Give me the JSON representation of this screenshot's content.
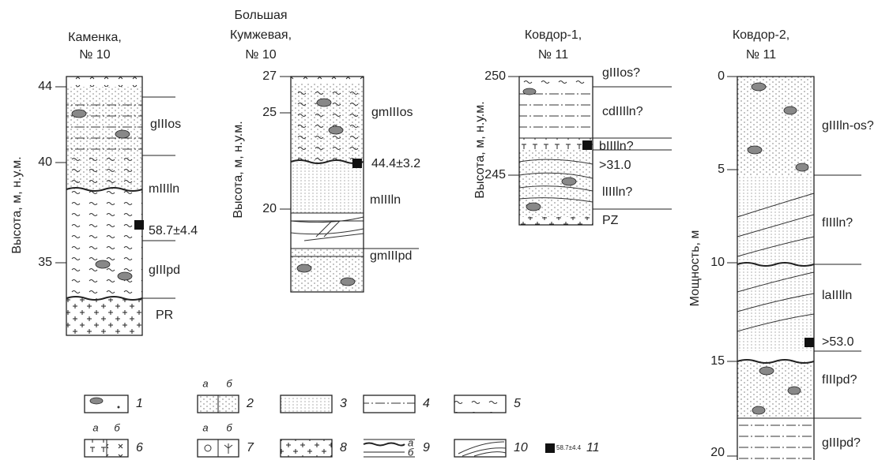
{
  "columns": [
    {
      "title": [
        "Каменка,",
        "№ 10"
      ],
      "axis_label": "Высота, м, н.у.м.",
      "ticks": [
        "44",
        "40",
        "35"
      ],
      "units": [
        "gIIIos",
        "mIIIln",
        "gIIIpd",
        "PR"
      ],
      "dates": [
        "58.7±4.4"
      ]
    },
    {
      "title": [
        "Большая",
        "Кумжевая,",
        "№ 10"
      ],
      "axis_label": "Высота, м, н.у.м.",
      "ticks": [
        "27",
        "25",
        "20"
      ],
      "units": [
        "gmIIIos",
        "mIIIln",
        "gmIIIpd"
      ],
      "dates": [
        "44.4±3.2"
      ]
    },
    {
      "title": [
        "Ковдор-1,",
        "№ 11"
      ],
      "axis_label": "Высота, м, н.у.м.",
      "ticks": [
        "250",
        "245"
      ],
      "units": [
        "gIIIos?",
        "cdIIIln?",
        "bIIIln?",
        "lIIIln?",
        "PZ"
      ],
      "dates": [
        ">31.0"
      ]
    },
    {
      "title": [
        "Ковдор-2,",
        "№ 11"
      ],
      "axis_label": "Мощность, м",
      "ticks": [
        "0",
        "5",
        "10",
        "15",
        "20"
      ],
      "units": [
        "gIIIln-os?",
        "fIIIln?",
        "laIIIln",
        "fIIIpd?",
        "gIIIpd?"
      ],
      "dates": [
        ">53.0"
      ]
    }
  ],
  "legend": {
    "numbers": [
      "1",
      "2",
      "3",
      "4",
      "5",
      "6",
      "7",
      "8",
      "9",
      "10",
      "11"
    ],
    "sublabels": {
      "item2": [
        "а",
        "б"
      ],
      "item6": [
        "а",
        "б"
      ],
      "item7": [
        "а",
        "б"
      ],
      "item9": [
        "а",
        "б"
      ]
    },
    "sample_date": "58.7±4.4"
  }
}
